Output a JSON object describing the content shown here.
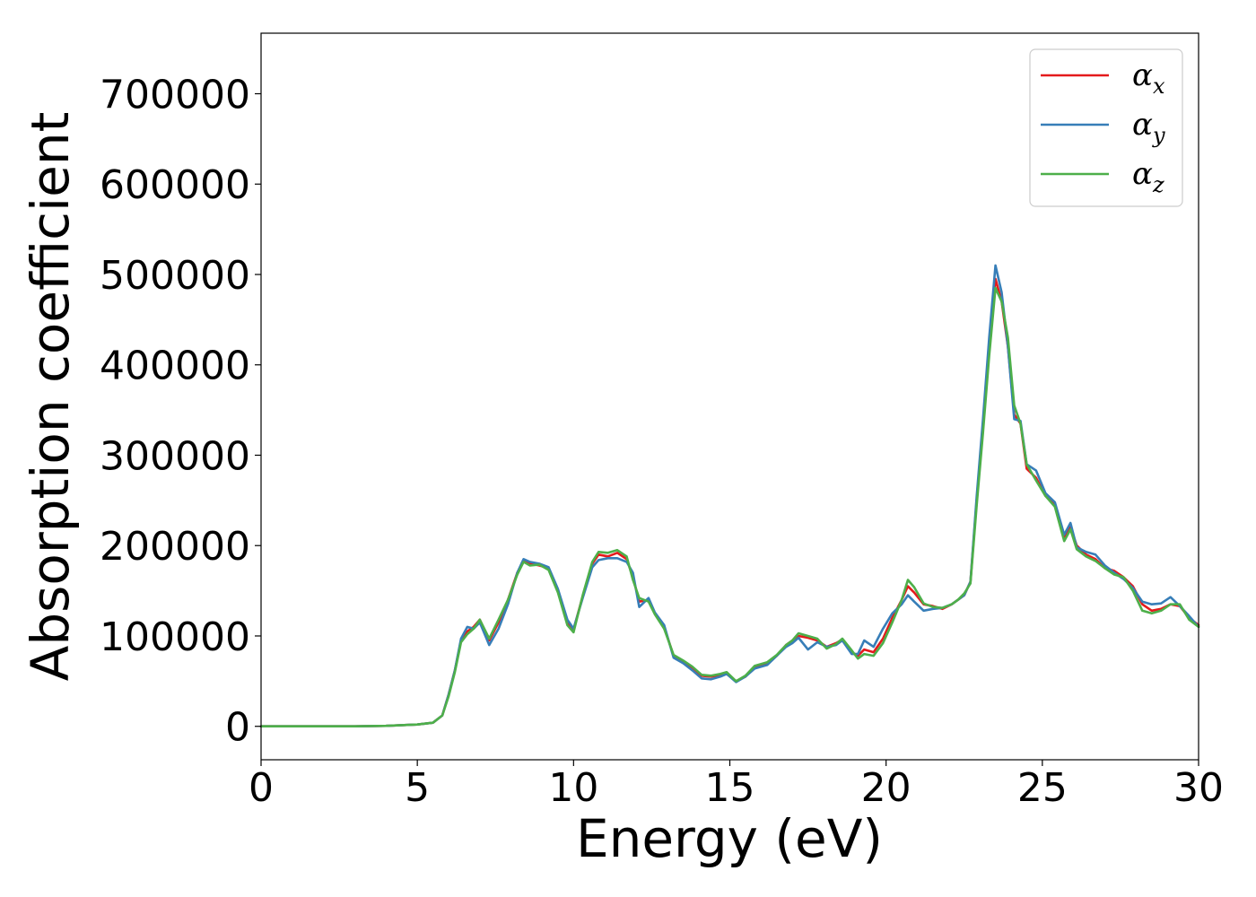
{
  "chart_data": {
    "type": "line",
    "title": "",
    "xlabel": "Energy (eV)",
    "ylabel": "Absorption coefficient",
    "xlim": [
      0,
      30
    ],
    "ylim": [
      -37000,
      767000
    ],
    "x_ticks": [
      0,
      5,
      10,
      15,
      20,
      25,
      30
    ],
    "y_ticks": [
      0,
      100000,
      200000,
      300000,
      400000,
      500000,
      600000,
      700000
    ],
    "x_tick_labels": [
      "0",
      "5",
      "10",
      "15",
      "20",
      "25",
      "30"
    ],
    "y_tick_labels": [
      "0",
      "100000",
      "200000",
      "300000",
      "400000",
      "500000",
      "600000",
      "700000"
    ],
    "grid": false,
    "legend_position": "top-right",
    "x": [
      0,
      1,
      2,
      3,
      4,
      5,
      5.5,
      5.8,
      6.0,
      6.2,
      6.4,
      6.6,
      6.8,
      7.0,
      7.3,
      7.6,
      7.9,
      8.2,
      8.4,
      8.6,
      8.9,
      9.2,
      9.5,
      9.8,
      10.0,
      10.3,
      10.6,
      10.8,
      11.1,
      11.4,
      11.7,
      11.9,
      12.1,
      12.4,
      12.6,
      12.9,
      13.2,
      13.5,
      13.8,
      14.1,
      14.4,
      14.7,
      14.9,
      15.2,
      15.5,
      15.8,
      16.2,
      16.5,
      16.8,
      17.0,
      17.2,
      17.5,
      17.8,
      18.1,
      18.4,
      18.6,
      18.9,
      19.1,
      19.3,
      19.6,
      19.9,
      20.2,
      20.5,
      20.7,
      20.9,
      21.2,
      21.5,
      21.8,
      22.1,
      22.3,
      22.5,
      22.7,
      22.9,
      23.1,
      23.3,
      23.5,
      23.7,
      23.9,
      24.1,
      24.3,
      24.5,
      24.8,
      25.1,
      25.4,
      25.7,
      25.9,
      26.1,
      26.4,
      26.7,
      27.0,
      27.3,
      27.6,
      27.9,
      28.2,
      28.5,
      28.8,
      29.1,
      29.4,
      29.7,
      30.0
    ],
    "series": [
      {
        "name": "x",
        "color": "#e41a1c",
        "values": [
          0,
          0,
          0,
          0,
          500,
          2000,
          4000,
          12000,
          35000,
          62000,
          95000,
          105000,
          110000,
          118000,
          95000,
          115000,
          140000,
          170000,
          183000,
          180000,
          178000,
          175000,
          150000,
          115000,
          107000,
          145000,
          180000,
          190000,
          188000,
          192000,
          185000,
          165000,
          138000,
          140000,
          125000,
          110000,
          78000,
          72000,
          65000,
          56000,
          55000,
          57000,
          58000,
          50000,
          55000,
          65000,
          70000,
          78000,
          90000,
          95000,
          100000,
          98000,
          95000,
          88000,
          92000,
          96000,
          82000,
          78000,
          85000,
          82000,
          97000,
          120000,
          140000,
          155000,
          148000,
          135000,
          133000,
          130000,
          135000,
          140000,
          145000,
          160000,
          250000,
          330000,
          420000,
          495000,
          470000,
          420000,
          345000,
          335000,
          285000,
          275000,
          255000,
          245000,
          210000,
          220000,
          200000,
          190000,
          185000,
          175000,
          172000,
          165000,
          155000,
          135000,
          128000,
          130000,
          135000,
          133000,
          120000,
          112000
        ]
      },
      {
        "name": "y",
        "color": "#377eb8",
        "values": [
          0,
          0,
          0,
          0,
          500,
          2000,
          4000,
          12000,
          35000,
          62000,
          97000,
          110000,
          108000,
          115000,
          90000,
          108000,
          135000,
          170000,
          185000,
          182000,
          180000,
          176000,
          152000,
          118000,
          108000,
          143000,
          176000,
          184000,
          186000,
          186000,
          182000,
          170000,
          132000,
          142000,
          126000,
          112000,
          76000,
          70000,
          62000,
          53000,
          52000,
          55000,
          58000,
          49000,
          55000,
          64000,
          68000,
          78000,
          88000,
          92000,
          98000,
          85000,
          93000,
          88000,
          90000,
          95000,
          80000,
          80000,
          95000,
          88000,
          108000,
          125000,
          135000,
          145000,
          138000,
          128000,
          130000,
          131000,
          135000,
          140000,
          145000,
          160000,
          255000,
          340000,
          430000,
          510000,
          480000,
          420000,
          340000,
          338000,
          290000,
          283000,
          258000,
          248000,
          212000,
          225000,
          198000,
          193000,
          190000,
          178000,
          170000,
          163000,
          153000,
          138000,
          135000,
          136000,
          143000,
          133000,
          122000,
          110000
        ]
      },
      {
        "name": "z",
        "color": "#4daf4a",
        "values": [
          0,
          0,
          0,
          0,
          500,
          2000,
          4000,
          12000,
          33000,
          60000,
          93000,
          102000,
          108000,
          118000,
          97000,
          118000,
          140000,
          168000,
          182000,
          178000,
          179000,
          173000,
          148000,
          112000,
          104000,
          146000,
          182000,
          193000,
          192000,
          195000,
          188000,
          162000,
          142000,
          138000,
          124000,
          108000,
          79000,
          73000,
          66000,
          57000,
          56000,
          58000,
          60000,
          50000,
          56000,
          67000,
          71000,
          79000,
          90000,
          95000,
          103000,
          100000,
          97000,
          86000,
          91000,
          97000,
          84000,
          75000,
          80000,
          78000,
          92000,
          115000,
          140000,
          162000,
          154000,
          136000,
          132000,
          131000,
          135000,
          140000,
          147000,
          158000,
          245000,
          325000,
          410000,
          485000,
          470000,
          430000,
          355000,
          335000,
          290000,
          272000,
          255000,
          243000,
          205000,
          218000,
          196000,
          188000,
          183000,
          175000,
          168000,
          165000,
          150000,
          128000,
          125000,
          128000,
          135000,
          135000,
          118000,
          110000
        ]
      }
    ]
  }
}
